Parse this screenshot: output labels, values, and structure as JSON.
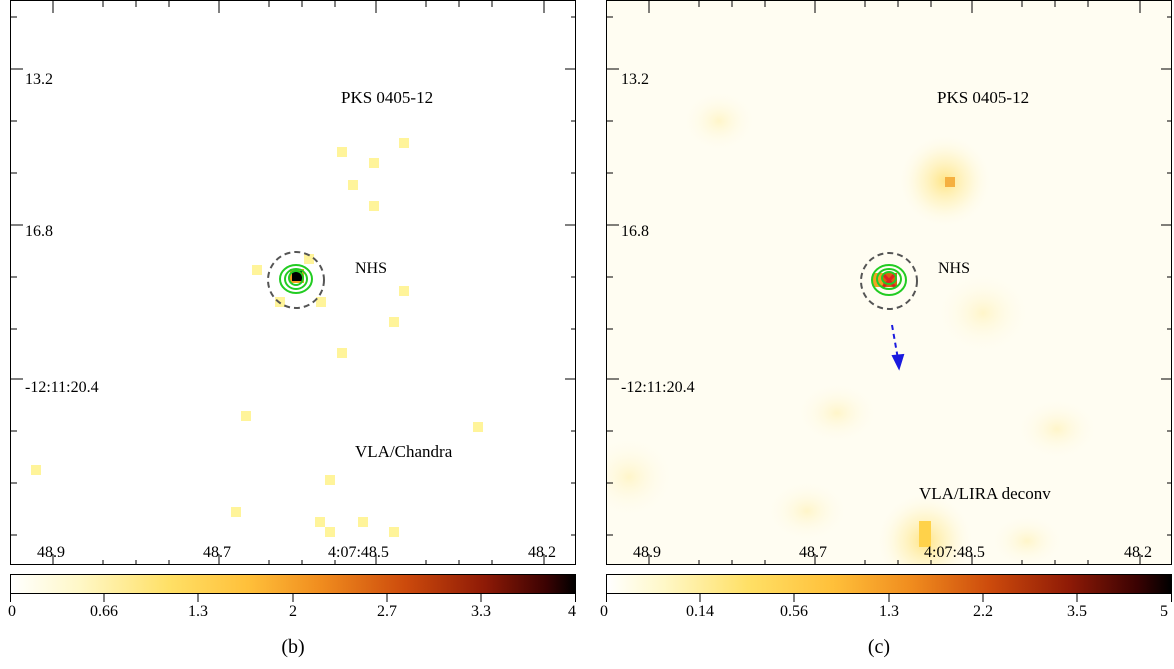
{
  "panels": {
    "b": {
      "source_label": "PKS 0405-12",
      "component_label": "NHS",
      "instrument_label": "VLA/Chandra",
      "dec_ticks": [
        "13.2",
        "16.8",
        "-12:11:20.4"
      ],
      "ra_ticks": [
        "48.9",
        "48.7",
        "4:07:48.5",
        "48.2"
      ],
      "colorbar_ticks": [
        "0",
        "0.66",
        "1.3",
        "2",
        "2.7",
        "3.3",
        "4"
      ],
      "caption": "(b)"
    },
    "c": {
      "source_label": "PKS 0405-12",
      "component_label": "NHS",
      "instrument_label": "VLA/LIRA deconv",
      "dec_ticks": [
        "13.2",
        "16.8",
        "-12:11:20.4"
      ],
      "ra_ticks": [
        "48.9",
        "48.7",
        "4:07:48.5",
        "48.2"
      ],
      "colorbar_ticks": [
        "0",
        "0.14",
        "0.56",
        "1.3",
        "2.2",
        "3.5",
        "5"
      ],
      "caption": "(c)"
    }
  },
  "colors": {
    "contour": "#22cc22",
    "region_circle": "#555555",
    "arrow": "#1a1adf",
    "colormap": [
      "#ffffff",
      "#fff2a0",
      "#ffd24a",
      "#f5a020",
      "#d86010",
      "#a82208",
      "#6a0606",
      "#000000"
    ]
  }
}
